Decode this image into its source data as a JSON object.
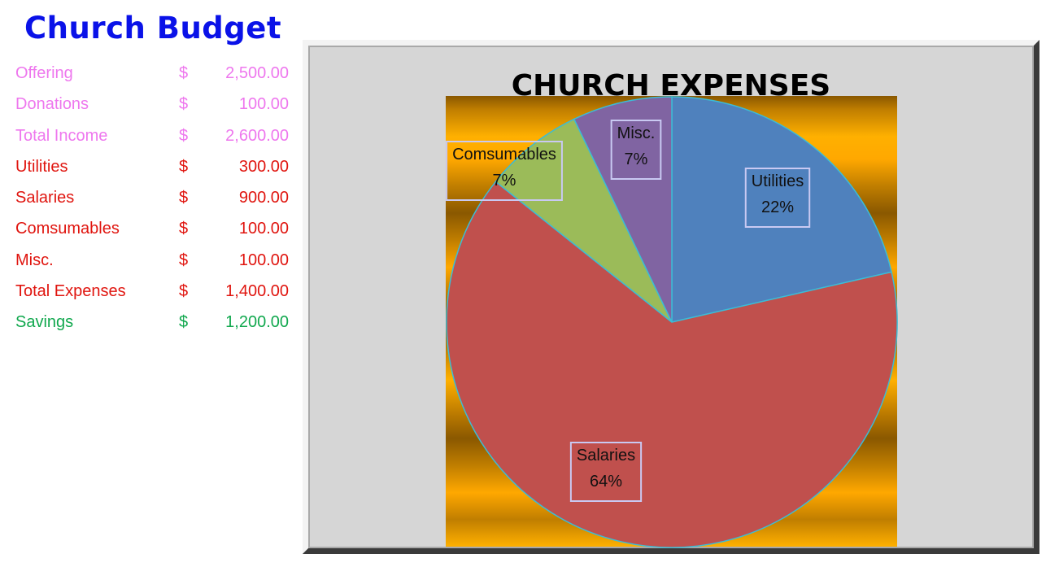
{
  "budget": {
    "title": "Church Budget",
    "rows": [
      {
        "label": "Offering",
        "currency": "$",
        "amount": "2,500.00",
        "kind": "income"
      },
      {
        "label": "Donations",
        "currency": "$",
        "amount": "100.00",
        "kind": "income"
      },
      {
        "label": "Total Income",
        "currency": "$",
        "amount": "2,600.00",
        "kind": "income"
      },
      {
        "label": "Utilities",
        "currency": "$",
        "amount": "300.00",
        "kind": "expense"
      },
      {
        "label": "Salaries",
        "currency": "$",
        "amount": "900.00",
        "kind": "expense"
      },
      {
        "label": "Comsumables",
        "currency": "$",
        "amount": "100.00",
        "kind": "expense"
      },
      {
        "label": "Misc.",
        "currency": "$",
        "amount": "100.00",
        "kind": "expense"
      },
      {
        "label": "Total Expenses",
        "currency": "$",
        "amount": "1,400.00",
        "kind": "expense"
      },
      {
        "label": "Savings",
        "currency": "$",
        "amount": "1,200.00",
        "kind": "savings"
      }
    ]
  },
  "chart_data": {
    "type": "pie",
    "title": "CHURCH EXPENSES",
    "categories": [
      "Utilities",
      "Salaries",
      "Comsumables",
      "Misc."
    ],
    "values": [
      300,
      900,
      100,
      100
    ],
    "percent_labels": [
      "22%",
      "64%",
      "7%",
      "7%"
    ],
    "colors": [
      "#4f81bd",
      "#c0504d",
      "#9bbb59",
      "#8064a2"
    ],
    "legend": "none",
    "data_labels": "category and percent",
    "plot_background": "gold gradient"
  }
}
